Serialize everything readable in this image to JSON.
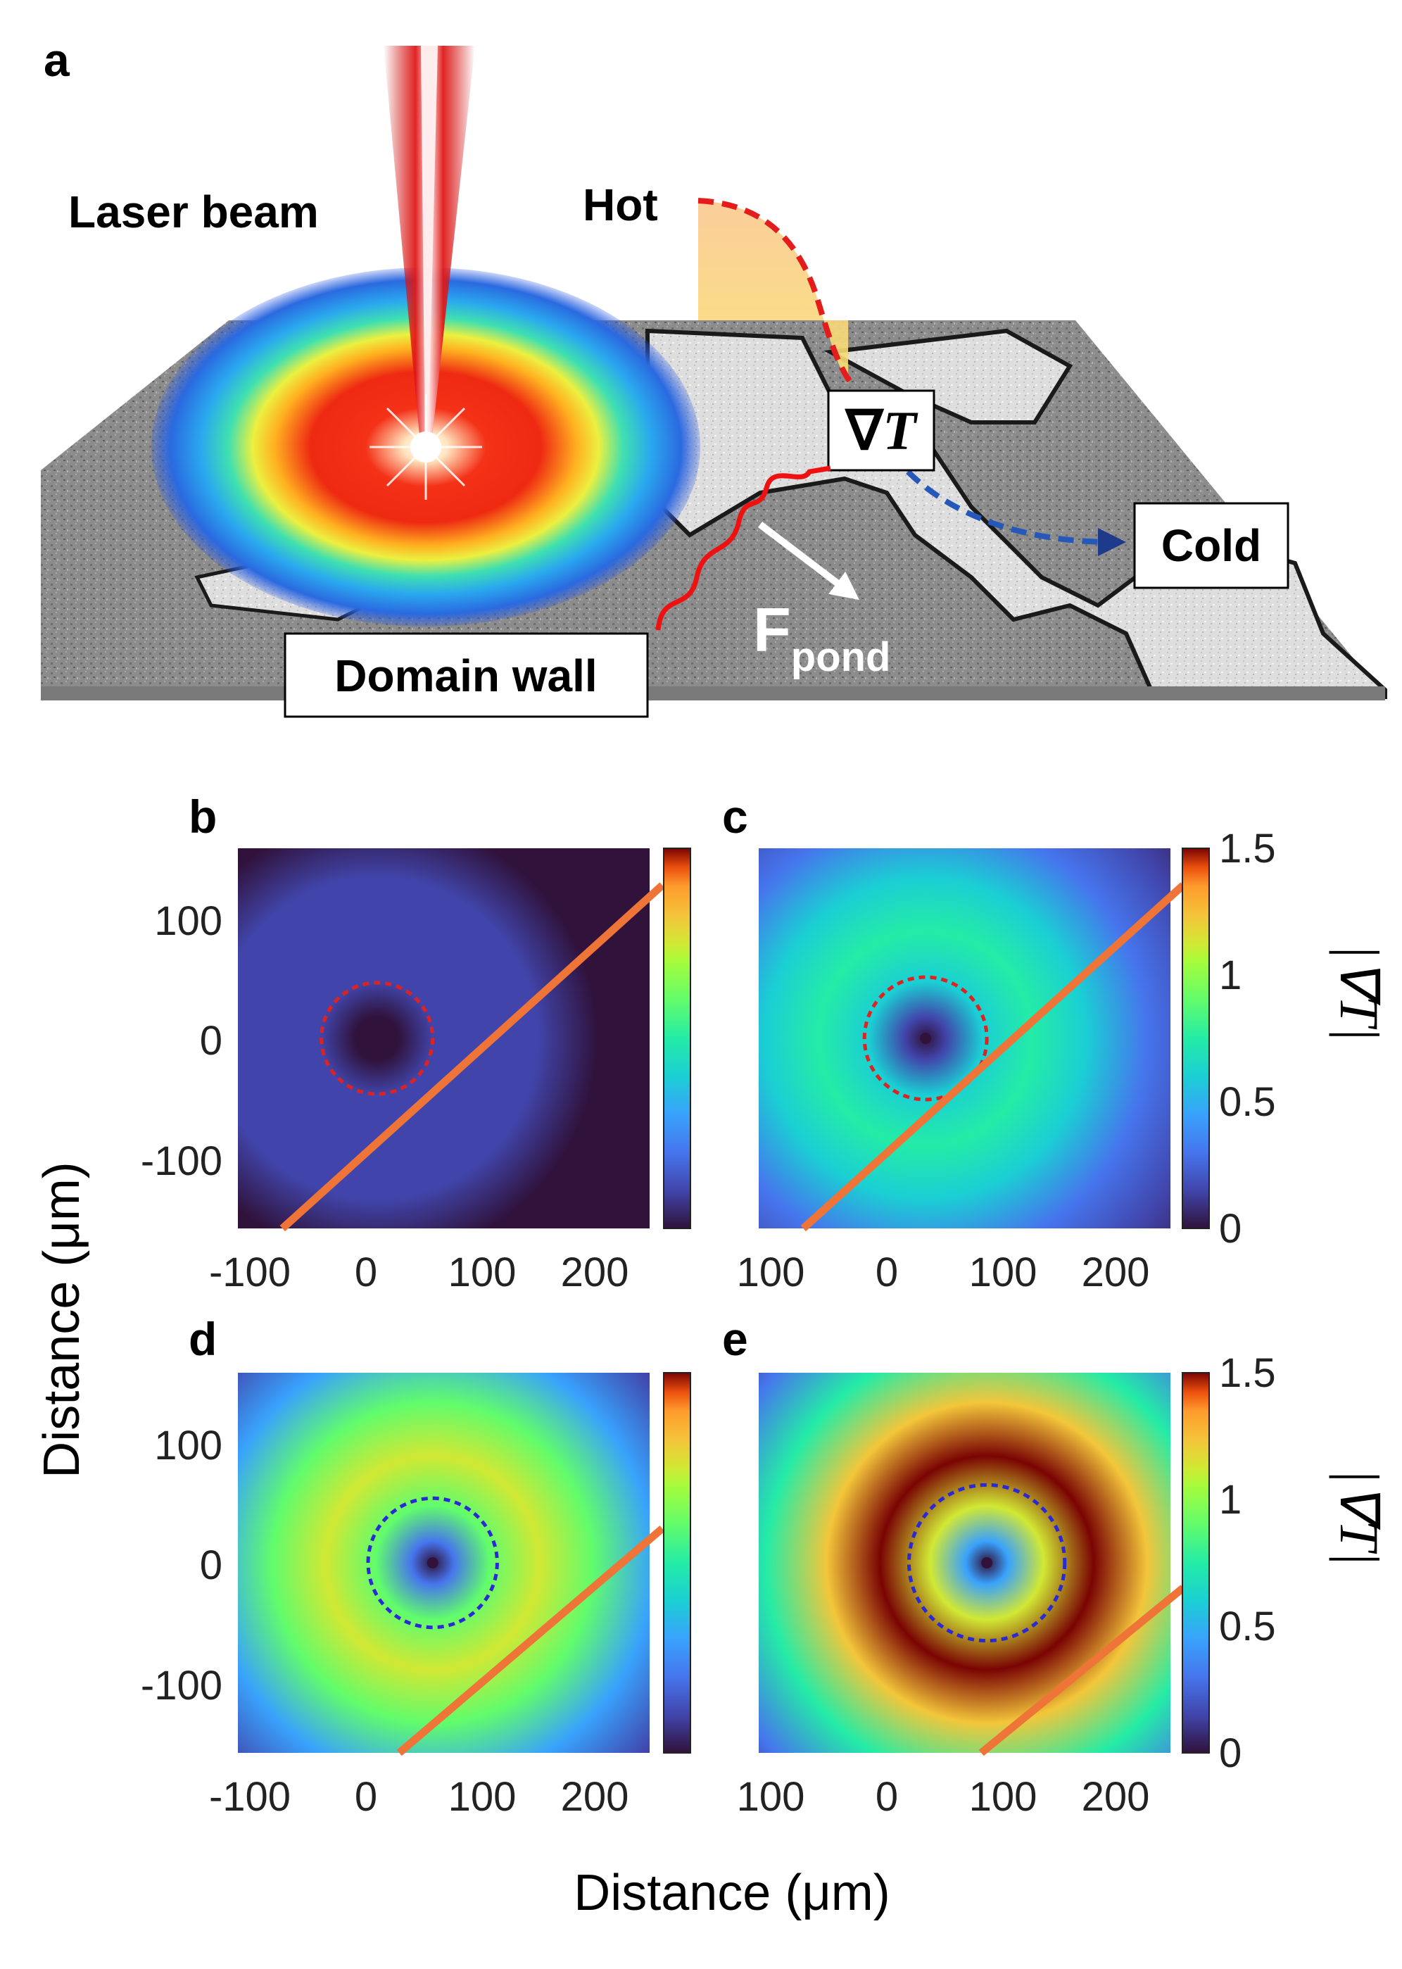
{
  "panel_a": {
    "label": "a",
    "laser_beam": "Laser beam",
    "hot": "Hot",
    "cold": "Cold",
    "grad_t_nabla": "∇",
    "grad_t_t": "T",
    "domain_wall": "Domain wall",
    "force_main": "F",
    "force_sub": "pond"
  },
  "x_axis_label": "Distance (μm)",
  "y_axis_label": "Distance (μm)",
  "colorbar_label": "|∇T|",
  "colors": {
    "domain_wall_line": "#ee7438",
    "circle_small": "#dd2222",
    "circle_large": "#2a2ad4",
    "background_dark": "#2b1746"
  },
  "chart_data": [
    {
      "type": "heatmap",
      "panel": "b",
      "x_ticks": [
        "-100",
        "0",
        "100",
        "200"
      ],
      "y_ticks": [
        "100",
        "0",
        "-100"
      ],
      "xlim": [
        -120,
        250
      ],
      "ylim": [
        -160,
        160
      ],
      "peak_gradT": 0.25,
      "center_x_um": 5,
      "center_y_um": 0,
      "circle": {
        "radius_um": 50,
        "color": "red"
      },
      "wall_line": {
        "x1_um": -80,
        "y1_um": -160,
        "x2_um": 250,
        "y2_um": 120
      },
      "colorbar": {
        "range": [
          0,
          1.5
        ],
        "tick_labels": []
      }
    },
    {
      "type": "heatmap",
      "panel": "c",
      "x_ticks": [
        "100",
        "0",
        "100",
        "200"
      ],
      "y_ticks": [],
      "xlim": [
        -120,
        250
      ],
      "ylim": [
        -160,
        160
      ],
      "peak_gradT": 0.75,
      "center_x_um": 30,
      "center_y_um": 0,
      "circle": {
        "radius_um": 55,
        "color": "red"
      },
      "wall_line": {
        "x1_um": -80,
        "y1_um": -160,
        "x2_um": 250,
        "y2_um": 120
      },
      "colorbar": {
        "range": [
          0,
          1.5
        ],
        "tick_labels": [
          "1.5",
          "1",
          "0.5",
          "0"
        ]
      }
    },
    {
      "type": "heatmap",
      "panel": "d",
      "x_ticks": [
        "-100",
        "0",
        "100",
        "200"
      ],
      "y_ticks": [
        "100",
        "0",
        "-100"
      ],
      "xlim": [
        -120,
        250
      ],
      "ylim": [
        -160,
        160
      ],
      "peak_gradT": 1.2,
      "center_x_um": 55,
      "center_y_um": 0,
      "circle": {
        "radius_um": 58,
        "color": "blue"
      },
      "wall_line": {
        "x1_um": 25,
        "y1_um": -160,
        "x2_um": 250,
        "y2_um": 20
      },
      "colorbar": {
        "range": [
          0,
          1.5
        ],
        "tick_labels": []
      }
    },
    {
      "type": "heatmap",
      "panel": "e",
      "x_ticks": [
        "100",
        "0",
        "100",
        "200"
      ],
      "y_ticks": [],
      "xlim": [
        -120,
        250
      ],
      "ylim": [
        -160,
        160
      ],
      "peak_gradT": 1.5,
      "center_x_um": 85,
      "center_y_um": 0,
      "circle": {
        "radius_um": 70,
        "color": "blue"
      },
      "wall_line": {
        "x1_um": 80,
        "y1_um": -160,
        "x2_um": 250,
        "y2_um": -30
      },
      "colorbar": {
        "range": [
          0,
          1.5
        ],
        "tick_labels": [
          "1.5",
          "1",
          "0.5",
          "0"
        ]
      }
    }
  ]
}
